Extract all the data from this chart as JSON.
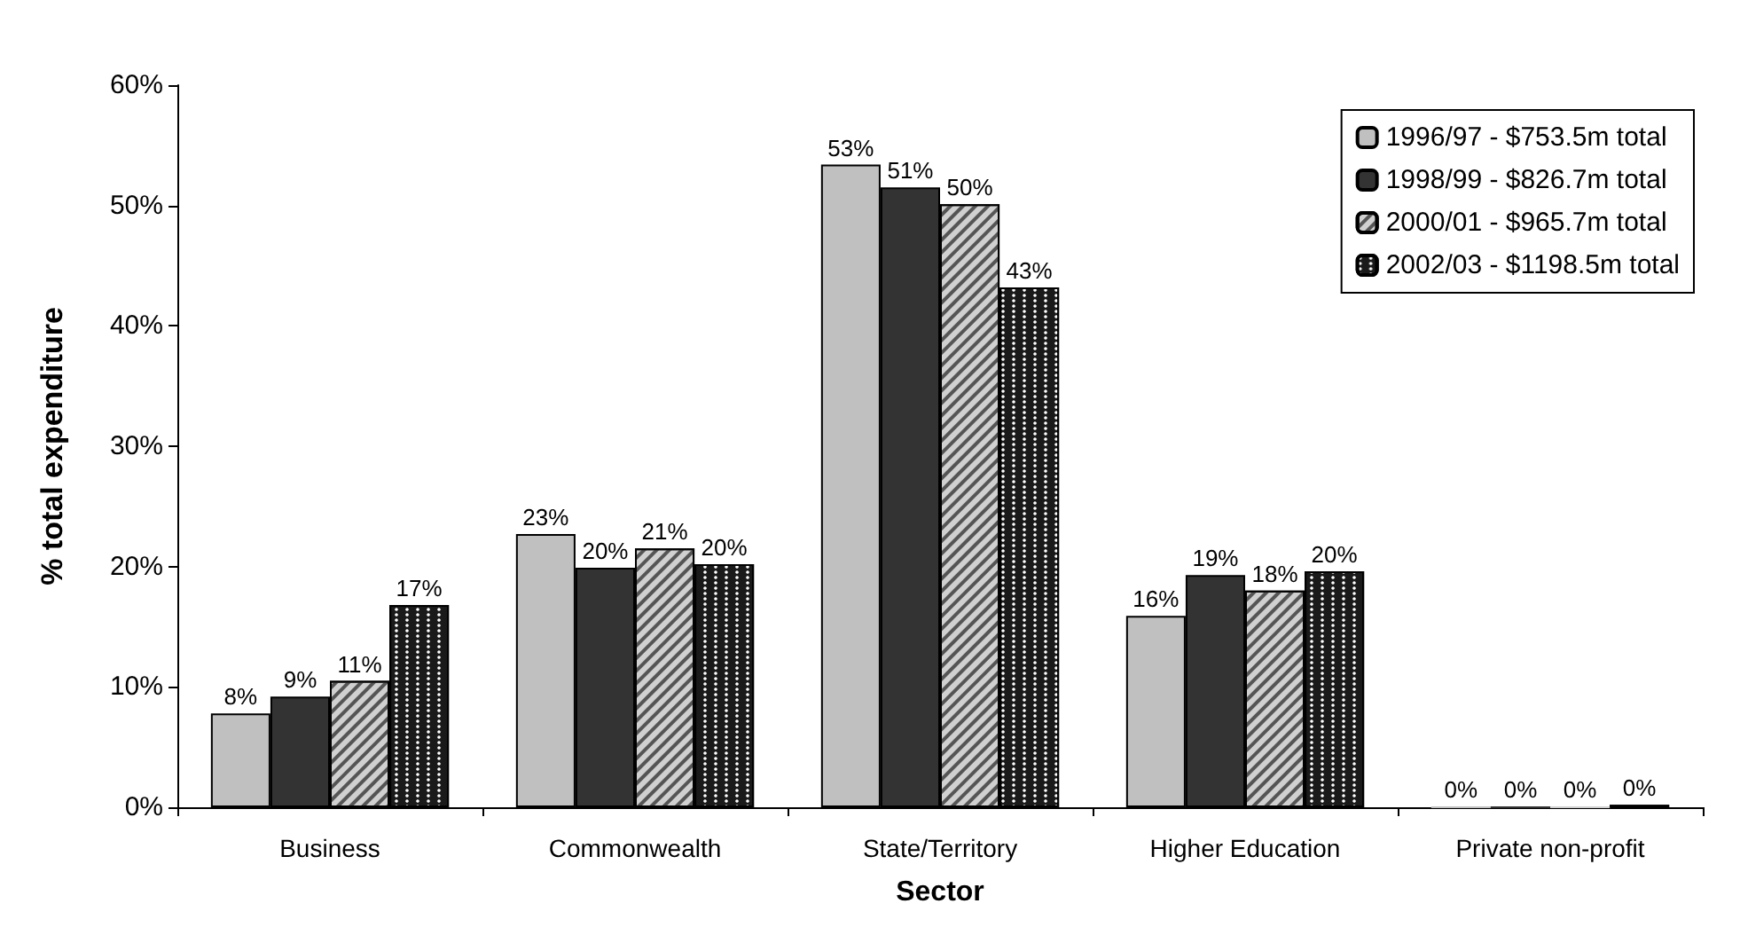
{
  "chart_data": {
    "type": "bar",
    "xlabel": "Sector",
    "ylabel": "% total expenditure",
    "categories": [
      "Business",
      "Commonwealth",
      "State/Territory",
      "Higher Education",
      "Private non-profit"
    ],
    "series": [
      {
        "name": "1996/97 - $753.5m total",
        "color": "#c0c0c0",
        "values": [
          7.8,
          22.7,
          53.4,
          15.9,
          0
        ],
        "value_labels": [
          "8%",
          "23%",
          "53%",
          "16%",
          "0%"
        ]
      },
      {
        "name": "1998/99 - $826.7m total",
        "color": "#333333",
        "values": [
          9.2,
          19.9,
          51.5,
          19.3,
          0
        ],
        "value_labels": [
          "9%",
          "20%",
          "51%",
          "19%",
          "0%"
        ]
      },
      {
        "name": "2000/01 - $965.7m total",
        "color": "#d0d0d0",
        "values": [
          10.5,
          21.5,
          50.1,
          18,
          0
        ],
        "value_labels": [
          "11%",
          "21%",
          "50%",
          "18%",
          "0%"
        ]
      },
      {
        "name": "2002/03 - $1198.5m total",
        "color": "#1a1a1a",
        "values": [
          16.8,
          20.2,
          43.2,
          19.6,
          0.2
        ],
        "value_labels": [
          "17%",
          "20%",
          "43%",
          "20%",
          "0%"
        ]
      }
    ],
    "ylim": [
      0,
      60
    ],
    "yticks": [
      {
        "value": 0,
        "label": "0%"
      },
      {
        "value": 10,
        "label": "10%"
      },
      {
        "value": 20,
        "label": "20%"
      },
      {
        "value": 30,
        "label": "30%"
      },
      {
        "value": 40,
        "label": "40%"
      },
      {
        "value": 50,
        "label": "50%"
      },
      {
        "value": 60,
        "label": "60%"
      }
    ],
    "grid": false,
    "legend": "top right"
  }
}
